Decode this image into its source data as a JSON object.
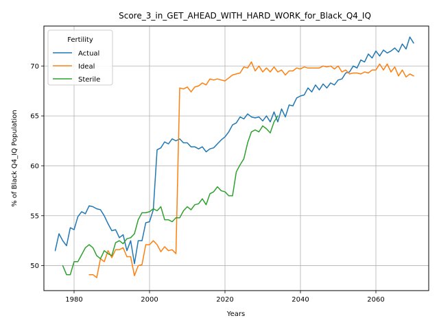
{
  "chart_data": {
    "type": "line",
    "title": "Score_3_in_GET_AHEAD_WITH_HARD_WORK_for_Black_Q4_IQ",
    "xlabel": "Years",
    "ylabel": "% of Black Q4_IQ Population",
    "xlim": [
      1972,
      2074
    ],
    "ylim": [
      47.5,
      74.0
    ],
    "xticks": [
      1980,
      2000,
      2020,
      2040,
      2060
    ],
    "yticks": [
      50,
      55,
      60,
      65,
      70
    ],
    "grid": true,
    "legend": {
      "title": "Fertility",
      "placement": "top-left"
    },
    "series": [
      {
        "name": "Actual",
        "color": "#1f77b4",
        "x": [
          1975,
          1976,
          1977,
          1978,
          1979,
          1980,
          1981,
          1982,
          1983,
          1984,
          1985,
          1986,
          1987,
          1988,
          1989,
          1990,
          1991,
          1992,
          1993,
          1994,
          1995,
          1996,
          1997,
          1998,
          1999,
          2000,
          2001,
          2002,
          2003,
          2004,
          2005,
          2006,
          2007,
          2008,
          2009,
          2010,
          2011,
          2012,
          2013,
          2014,
          2015,
          2016,
          2017,
          2018,
          2019,
          2020,
          2021,
          2022,
          2023,
          2024,
          2025,
          2026,
          2027,
          2028,
          2029,
          2030,
          2031,
          2032,
          2033,
          2034,
          2035,
          2036,
          2037,
          2038,
          2039,
          2040,
          2041,
          2042,
          2043,
          2044,
          2045,
          2046,
          2047,
          2048,
          2049,
          2050,
          2051,
          2052,
          2053,
          2054,
          2055,
          2056,
          2057,
          2058,
          2059,
          2060,
          2061,
          2062,
          2063,
          2064,
          2065,
          2066,
          2067,
          2068,
          2069,
          2070
        ],
        "values": [
          51.5,
          53.2,
          52.5,
          52.0,
          53.8,
          53.6,
          54.9,
          55.4,
          55.2,
          56.0,
          55.9,
          55.7,
          55.6,
          55.0,
          54.2,
          53.5,
          53.6,
          52.8,
          53.1,
          51.5,
          52.5,
          50.2,
          52.5,
          52.5,
          54.3,
          54.4,
          55.6,
          61.6,
          61.8,
          62.4,
          62.2,
          62.7,
          62.5,
          62.7,
          62.3,
          62.3,
          61.9,
          61.9,
          61.7,
          61.9,
          61.4,
          61.7,
          61.8,
          62.2,
          62.6,
          62.9,
          63.4,
          64.1,
          64.3,
          64.9,
          64.7,
          65.2,
          64.9,
          64.8,
          64.9,
          64.5,
          65.0,
          64.4,
          65.4,
          64.4,
          65.7,
          64.9,
          66.1,
          66.0,
          66.8,
          67.0,
          67.1,
          67.8,
          67.4,
          68.1,
          67.6,
          68.2,
          67.8,
          68.3,
          68.1,
          68.6,
          68.7,
          69.3,
          69.4,
          70.0,
          69.8,
          70.6,
          70.4,
          71.2,
          70.8,
          71.5,
          71.0,
          71.6,
          71.3,
          71.5,
          71.8,
          71.4,
          72.2,
          71.7,
          72.9,
          72.3
        ]
      },
      {
        "name": "Ideal",
        "color": "#ff7f0e",
        "x": [
          1984,
          1985,
          1986,
          1987,
          1988,
          1989,
          1990,
          1991,
          1992,
          1993,
          1994,
          1995,
          1996,
          1997,
          1998,
          1999,
          2000,
          2001,
          2002,
          2003,
          2004,
          2005,
          2006,
          2007,
          2008,
          2009,
          2010,
          2011,
          2012,
          2013,
          2014,
          2015,
          2016,
          2017,
          2018,
          2019,
          2020,
          2021,
          2022,
          2023,
          2024,
          2025,
          2026,
          2027,
          2028,
          2029,
          2030,
          2031,
          2032,
          2033,
          2034,
          2035,
          2036,
          2037,
          2038,
          2039,
          2040,
          2041,
          2042,
          2043,
          2044,
          2045,
          2046,
          2047,
          2048,
          2049,
          2050,
          2051,
          2052,
          2053,
          2054,
          2055,
          2056,
          2057,
          2058,
          2059,
          2060,
          2061,
          2062,
          2063,
          2064,
          2065,
          2066,
          2067,
          2068,
          2069,
          2070
        ],
        "values": [
          49.1,
          49.1,
          48.8,
          50.7,
          50.4,
          51.5,
          50.8,
          51.6,
          51.6,
          51.8,
          50.9,
          50.9,
          49.0,
          50.0,
          50.1,
          52.1,
          52.1,
          52.5,
          52.1,
          51.4,
          51.9,
          51.5,
          51.6,
          51.2,
          67.8,
          67.7,
          67.9,
          67.4,
          67.9,
          68.0,
          68.3,
          68.1,
          68.7,
          68.6,
          68.7,
          68.6,
          68.5,
          68.8,
          69.1,
          69.2,
          69.3,
          69.9,
          69.8,
          70.4,
          69.5,
          70.0,
          69.4,
          69.8,
          69.4,
          69.9,
          69.4,
          69.6,
          69.1,
          69.5,
          69.5,
          69.8,
          69.7,
          69.9,
          69.8,
          69.8,
          69.8,
          69.8,
          70.0,
          69.9,
          70.0,
          69.7,
          70.0,
          69.4,
          69.6,
          69.2,
          69.3,
          69.3,
          69.2,
          69.4,
          69.3,
          69.6,
          69.6,
          70.2,
          69.6,
          70.2,
          69.4,
          69.9,
          69.0,
          69.6,
          68.9,
          69.2,
          69.0
        ]
      },
      {
        "name": "Sterile",
        "color": "#2ca02c",
        "x": [
          1977,
          1978,
          1979,
          1980,
          1981,
          1982,
          1983,
          1984,
          1985,
          1986,
          1987,
          1988,
          1989,
          1990,
          1991,
          1992,
          1993,
          1994,
          1995,
          1996,
          1997,
          1998,
          1999,
          2000,
          2001,
          2002,
          2003,
          2004,
          2005,
          2006,
          2007,
          2008,
          2009,
          2010,
          2011,
          2012,
          2013,
          2014,
          2015,
          2016,
          2017,
          2018,
          2019,
          2020,
          2021,
          2022,
          2023,
          2024,
          2025,
          2026,
          2027,
          2028,
          2029,
          2030,
          2031,
          2032,
          2033,
          2034
        ],
        "values": [
          50.0,
          49.1,
          49.1,
          50.4,
          50.4,
          51.1,
          51.8,
          52.1,
          51.8,
          51.0,
          50.7,
          51.5,
          51.2,
          51.0,
          52.3,
          52.5,
          52.2,
          52.7,
          52.8,
          53.2,
          54.6,
          55.3,
          55.3,
          55.4,
          55.7,
          55.5,
          55.9,
          54.6,
          54.6,
          54.4,
          54.8,
          54.8,
          55.5,
          55.9,
          55.6,
          56.1,
          56.2,
          56.7,
          56.1,
          57.2,
          57.4,
          57.9,
          57.5,
          57.4,
          57.0,
          57.0,
          59.4,
          60.1,
          60.7,
          62.3,
          63.4,
          63.6,
          63.4,
          64.0,
          63.7,
          63.3,
          64.4,
          65.0
        ]
      }
    ]
  }
}
